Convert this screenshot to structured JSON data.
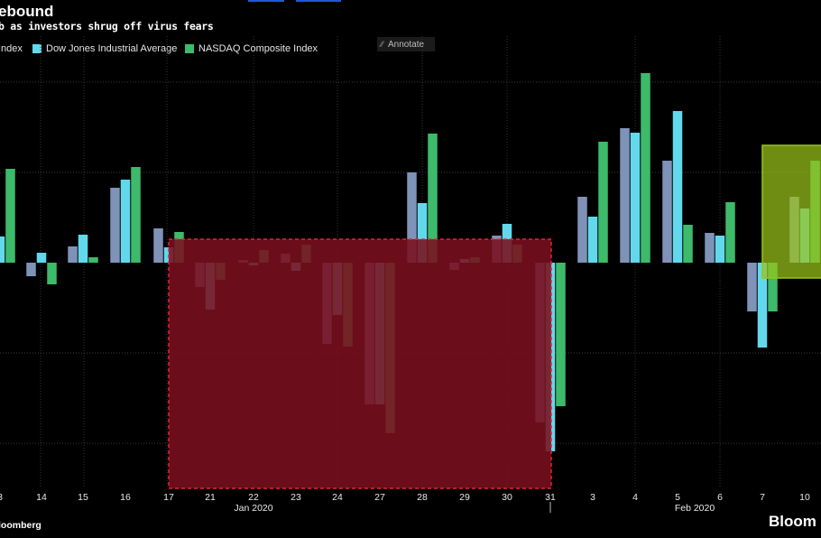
{
  "title": "ebound",
  "subtitle": "b as investors shrug off virus fears",
  "legend": [
    {
      "label": "Index",
      "color": "#7f93b8",
      "show_swatch": false
    },
    {
      "label": "Dow Jones Industrial Average",
      "color": "#62d8ec",
      "show_swatch": true
    },
    {
      "label": "NASDAQ Composite Index",
      "color": "#3dba6a",
      "show_swatch": true
    }
  ],
  "annotate_label": "Annotate",
  "source": "loomberg",
  "brand": "Bloom",
  "highlight_colors": {
    "decline_box": "#7a0f1e",
    "decline_border": "#e8203a",
    "rebound_box": "#9ac41a"
  },
  "chart_data": {
    "type": "bar",
    "categories": [
      "3",
      "14",
      "15",
      "16",
      "17",
      "21",
      "22",
      "23",
      "24",
      "27",
      "28",
      "29",
      "30",
      "31",
      "3",
      "4",
      "5",
      "6",
      "7",
      "10"
    ],
    "months": [
      "Jan 2020",
      "Feb 2020"
    ],
    "series": [
      {
        "name": "Index",
        "color": "#7f93b8",
        "values": [
          null,
          -0.15,
          0.18,
          0.83,
          0.38,
          -0.27,
          0.03,
          0.1,
          -0.9,
          -1.57,
          1.0,
          -0.08,
          0.3,
          -1.77,
          0.73,
          1.49,
          1.13,
          0.33,
          -0.54,
          0.73
        ]
      },
      {
        "name": "Dow Jones Industrial Average",
        "color": "#62d8ec",
        "values": [
          0.29,
          0.11,
          0.31,
          0.92,
          0.17,
          -0.52,
          -0.03,
          -0.09,
          -0.58,
          -1.57,
          0.66,
          0.04,
          0.43,
          -2.09,
          0.51,
          1.44,
          1.68,
          0.3,
          -0.94,
          0.6
        ]
      },
      {
        "name": "NASDAQ Composite Index",
        "color": "#3dba6a",
        "values": [
          1.04,
          -0.24,
          0.06,
          1.06,
          0.34,
          -0.19,
          0.14,
          0.2,
          -0.93,
          -1.89,
          1.43,
          0.06,
          0.2,
          -1.59,
          1.34,
          2.1,
          0.42,
          0.67,
          -0.54,
          1.13
        ]
      }
    ],
    "ylim": [
      -2.5,
      2.5
    ],
    "grid": true
  }
}
